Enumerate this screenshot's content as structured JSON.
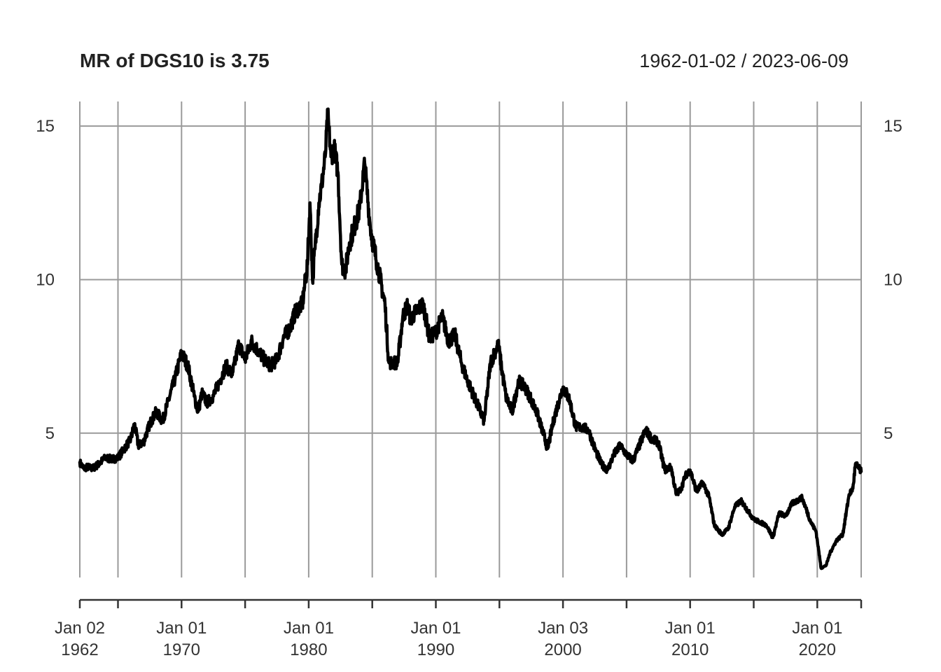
{
  "chart_data": {
    "type": "line",
    "title": "MR of DGS10 is 3.75",
    "date_range": "1962-01-02 / 2023-06-09",
    "x_start": 1962.0,
    "x_end": 2023.45,
    "ylim": [
      0.3,
      15.8
    ],
    "y_ticks": [
      5,
      10,
      15
    ],
    "grid": true,
    "x_grid_years": [
      1962,
      1965,
      1970,
      1975,
      1980,
      1985,
      1990,
      1995,
      2000,
      2005,
      2010,
      2015,
      2020,
      2023.45
    ],
    "x_tick_labels": [
      {
        "year": 1962.0,
        "line1": "Jan 02",
        "line2": "1962"
      },
      {
        "year": 1970.0,
        "line1": "Jan 01",
        "line2": "1970"
      },
      {
        "year": 1980.0,
        "line1": "Jan 01",
        "line2": "1980"
      },
      {
        "year": 1990.0,
        "line1": "Jan 01",
        "line2": "1990"
      },
      {
        "year": 2000.0,
        "line1": "Jan 03",
        "line2": "2000"
      },
      {
        "year": 2010.0,
        "line1": "Jan 01",
        "line2": "2010"
      },
      {
        "year": 2020.0,
        "line1": "Jan 01",
        "line2": "2020"
      }
    ],
    "series": [
      {
        "color": "#000000",
        "x": [
          1962.0,
          1962.3,
          1962.6,
          1963.0,
          1963.5,
          1964.0,
          1964.5,
          1965.0,
          1965.5,
          1966.0,
          1966.3,
          1966.6,
          1967.0,
          1967.5,
          1968.0,
          1968.5,
          1969.0,
          1969.5,
          1970.0,
          1970.5,
          1971.0,
          1971.3,
          1971.6,
          1972.0,
          1972.5,
          1973.0,
          1973.5,
          1974.0,
          1974.5,
          1975.0,
          1975.5,
          1976.0,
          1976.5,
          1977.0,
          1977.5,
          1978.0,
          1978.5,
          1979.0,
          1979.5,
          1979.9,
          1980.1,
          1980.3,
          1980.5,
          1980.8,
          1981.0,
          1981.3,
          1981.5,
          1981.75,
          1982.0,
          1982.3,
          1982.6,
          1982.9,
          1983.2,
          1983.5,
          1984.0,
          1984.4,
          1984.8,
          1985.0,
          1985.5,
          1986.0,
          1986.3,
          1986.6,
          1987.0,
          1987.4,
          1987.8,
          1988.0,
          1988.5,
          1989.0,
          1989.5,
          1990.0,
          1990.5,
          1991.0,
          1991.5,
          1992.0,
          1992.5,
          1993.0,
          1993.8,
          1994.3,
          1994.9,
          1995.5,
          1996.0,
          1996.5,
          1997.0,
          1997.5,
          1998.0,
          1998.8,
          1999.3,
          2000.0,
          2000.5,
          2001.0,
          2001.5,
          2002.0,
          2002.5,
          2003.0,
          2003.5,
          2004.0,
          2004.5,
          2005.0,
          2005.5,
          2006.0,
          2006.5,
          2007.0,
          2007.5,
          2008.0,
          2008.5,
          2008.9,
          2009.3,
          2009.6,
          2010.0,
          2010.5,
          2011.0,
          2011.5,
          2011.9,
          2012.5,
          2013.0,
          2013.5,
          2014.0,
          2014.5,
          2015.0,
          2015.5,
          2016.0,
          2016.5,
          2017.0,
          2017.5,
          2018.0,
          2018.8,
          2019.5,
          2019.9,
          2020.1,
          2020.3,
          2020.7,
          2021.0,
          2021.5,
          2022.0,
          2022.5,
          2022.8,
          2023.0,
          2023.45
        ],
        "values": [
          4.05,
          3.85,
          3.9,
          3.85,
          4.0,
          4.2,
          4.15,
          4.2,
          4.5,
          4.8,
          5.3,
          4.6,
          4.7,
          5.3,
          5.7,
          5.4,
          6.1,
          6.8,
          7.6,
          7.2,
          6.2,
          5.7,
          6.3,
          6.0,
          6.2,
          6.7,
          7.2,
          6.9,
          7.9,
          7.4,
          8.0,
          7.7,
          7.4,
          7.2,
          7.4,
          8.1,
          8.4,
          9.0,
          9.2,
          10.5,
          12.5,
          10.0,
          11.0,
          12.5,
          13.0,
          14.0,
          15.4,
          14.0,
          14.3,
          13.5,
          10.5,
          10.3,
          11.2,
          11.6,
          12.3,
          13.8,
          11.9,
          11.3,
          10.3,
          9.2,
          7.3,
          7.3,
          7.3,
          8.8,
          9.2,
          8.7,
          9.0,
          9.2,
          8.1,
          8.3,
          8.8,
          8.0,
          8.2,
          7.3,
          6.7,
          6.2,
          5.4,
          7.3,
          7.9,
          6.2,
          5.7,
          6.7,
          6.5,
          6.1,
          5.6,
          4.5,
          5.5,
          6.5,
          6.1,
          5.2,
          5.2,
          5.1,
          4.5,
          4.0,
          3.8,
          4.3,
          4.6,
          4.3,
          4.1,
          4.6,
          5.1,
          4.8,
          4.7,
          3.8,
          3.9,
          3.0,
          3.2,
          3.6,
          3.8,
          3.1,
          3.4,
          2.9,
          2.0,
          1.7,
          1.9,
          2.6,
          2.8,
          2.5,
          2.2,
          2.1,
          2.0,
          1.6,
          2.4,
          2.3,
          2.7,
          2.9,
          2.1,
          1.8,
          1.2,
          0.6,
          0.7,
          1.1,
          1.5,
          1.7,
          3.0,
          3.2,
          4.0,
          3.75
        ]
      }
    ]
  }
}
